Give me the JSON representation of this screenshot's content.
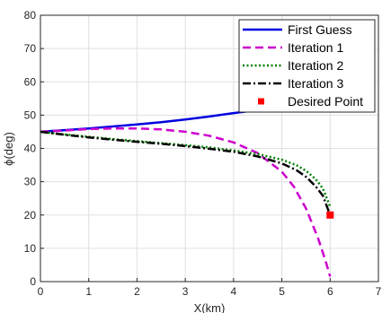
{
  "chart_data": {
    "type": "line",
    "xlabel": "X(km)",
    "ylabel": "ϕ(deg)",
    "xlim": [
      0,
      7
    ],
    "ylim": [
      0,
      80
    ],
    "xticks": [
      0,
      1,
      2,
      3,
      4,
      5,
      6,
      7
    ],
    "yticks": [
      0,
      10,
      20,
      30,
      40,
      50,
      60,
      70,
      80
    ],
    "grid": true,
    "legend_position": "top-right",
    "series": [
      {
        "name": "First Guess",
        "color": "#0000e0",
        "style": "solid",
        "x": [
          0,
          0.5,
          1,
          1.5,
          2,
          2.5,
          3,
          3.5,
          4,
          4.5,
          5,
          5.5,
          6
        ],
        "y": [
          45,
          45.5,
          46.0,
          46.6,
          47.2,
          47.9,
          48.7,
          49.6,
          50.6,
          51.5,
          52.4,
          53.1,
          53.8
        ]
      },
      {
        "name": "Iteration 1",
        "color": "#cc00cc",
        "style": "dashed",
        "x": [
          0,
          0.5,
          1,
          1.5,
          2,
          2.5,
          3,
          3.5,
          4,
          4.5,
          5,
          5.25,
          5.5,
          5.75,
          5.9,
          6.0
        ],
        "y": [
          45,
          45.4,
          45.8,
          46.0,
          46.0,
          45.7,
          45.0,
          43.8,
          41.8,
          38.6,
          33.0,
          28.5,
          22.0,
          13.0,
          6.5,
          1.5
        ]
      },
      {
        "name": "Iteration 2",
        "color": "#008000",
        "style": "dotted",
        "x": [
          0,
          0.5,
          1,
          1.5,
          2,
          2.5,
          3,
          3.5,
          4,
          4.5,
          5,
          5.3,
          5.5,
          5.7,
          5.85,
          6.0
        ],
        "y": [
          45,
          44.2,
          43.5,
          42.8,
          42.2,
          41.6,
          41.0,
          40.3,
          39.4,
          38.3,
          36.6,
          35.0,
          33.3,
          30.8,
          28.0,
          22.5
        ]
      },
      {
        "name": "Iteration 3",
        "color": "#000000",
        "style": "dashdot",
        "x": [
          0,
          0.5,
          1,
          1.5,
          2,
          2.5,
          3,
          3.5,
          4,
          4.5,
          5,
          5.3,
          5.5,
          5.7,
          5.85,
          6.0
        ],
        "y": [
          45,
          44.1,
          43.3,
          42.6,
          42.0,
          41.4,
          40.7,
          39.9,
          39.0,
          37.6,
          35.5,
          33.5,
          31.5,
          28.6,
          25.8,
          20.0
        ]
      },
      {
        "name": "Desired Point",
        "color": "#ff0000",
        "style": "marker",
        "x": [
          6.0
        ],
        "y": [
          20
        ]
      }
    ]
  }
}
